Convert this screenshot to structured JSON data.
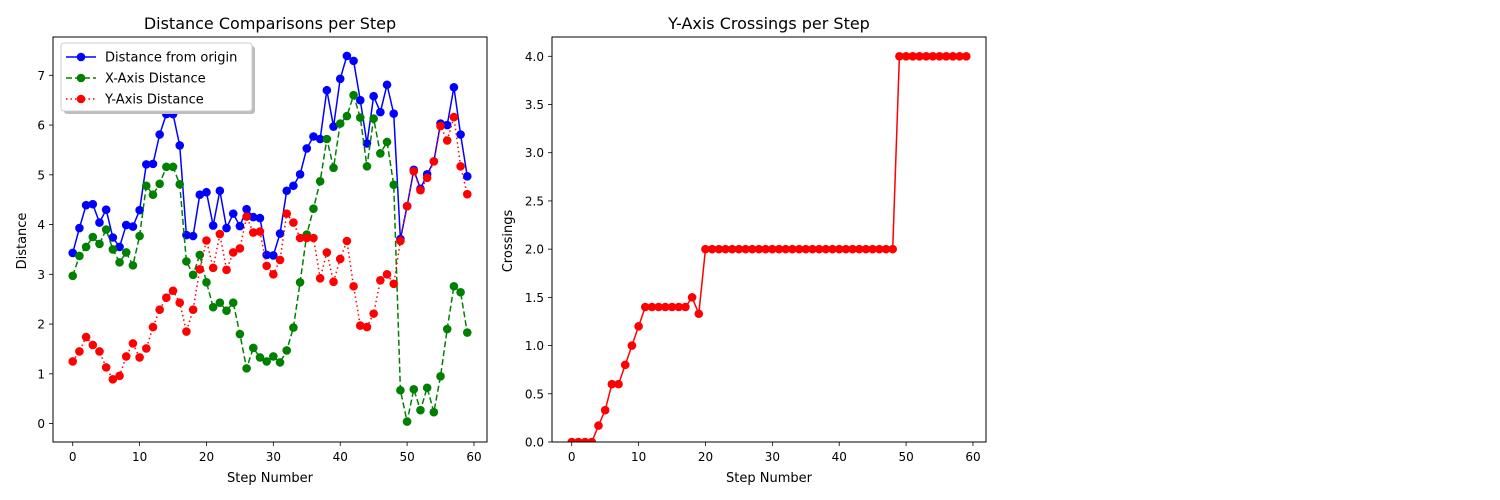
{
  "chart_data": [
    {
      "type": "line",
      "title": "Distance Comparisons per Step",
      "xlabel": "Step Number",
      "ylabel": "Distance",
      "xlim": [
        -2.95,
        61.95
      ],
      "ylim": [
        -0.37,
        7.77
      ],
      "xticks": [
        0,
        10,
        20,
        30,
        40,
        50,
        60
      ],
      "yticks": [
        0,
        1,
        2,
        3,
        4,
        5,
        6,
        7
      ],
      "grid": false,
      "legend": "upper-left",
      "x": [
        0,
        1,
        2,
        3,
        4,
        5,
        6,
        7,
        8,
        9,
        10,
        11,
        12,
        13,
        14,
        15,
        16,
        17,
        18,
        19,
        20,
        21,
        22,
        23,
        24,
        25,
        26,
        27,
        28,
        29,
        30,
        31,
        32,
        33,
        34,
        35,
        36,
        37,
        38,
        39,
        40,
        41,
        42,
        43,
        44,
        45,
        46,
        47,
        48,
        49,
        50,
        51,
        52,
        53,
        54,
        55,
        56,
        57,
        58,
        59
      ],
      "series": [
        {
          "name": "Distance from origin",
          "color": "#0000ff",
          "style": "solid",
          "values": [
            3.43,
            3.93,
            4.39,
            4.41,
            4.04,
            4.3,
            3.74,
            3.55,
            3.99,
            3.96,
            4.29,
            5.21,
            5.22,
            5.81,
            6.22,
            6.22,
            5.59,
            3.79,
            3.77,
            4.6,
            4.65,
            3.98,
            4.68,
            3.93,
            4.22,
            3.97,
            4.31,
            4.15,
            4.13,
            3.39,
            3.38,
            3.82,
            4.68,
            4.78,
            5.01,
            5.53,
            5.77,
            5.72,
            6.7,
            5.97,
            6.93,
            7.39,
            7.29,
            6.5,
            5.63,
            6.58,
            6.26,
            6.81,
            6.23,
            3.71,
            4.37,
            5.1,
            4.72,
            5.01,
            5.27,
            6.03,
            6.0,
            6.76,
            5.81,
            4.97
          ]
        },
        {
          "name": "X-Axis Distance",
          "color": "#008000",
          "style": "dashed",
          "values": [
            2.97,
            3.37,
            3.55,
            3.75,
            3.61,
            3.9,
            3.5,
            3.24,
            3.44,
            3.18,
            3.77,
            4.78,
            4.6,
            4.82,
            5.16,
            5.16,
            4.81,
            3.26,
            2.99,
            3.39,
            2.84,
            2.34,
            2.43,
            2.27,
            2.43,
            1.8,
            1.11,
            1.52,
            1.33,
            1.25,
            1.35,
            1.23,
            1.47,
            1.93,
            2.84,
            3.8,
            4.32,
            4.87,
            5.72,
            5.14,
            6.03,
            6.18,
            6.6,
            6.15,
            5.17,
            6.13,
            5.43,
            5.66,
            4.8,
            0.67,
            0.04,
            0.69,
            0.27,
            0.72,
            0.23,
            0.95,
            1.9,
            2.76,
            2.64,
            1.83
          ]
        },
        {
          "name": "Y-Axis Distance",
          "color": "#ff0000",
          "style": "dotted",
          "values": [
            1.25,
            1.45,
            1.74,
            1.58,
            1.45,
            1.13,
            0.89,
            0.96,
            1.35,
            1.61,
            1.33,
            1.51,
            1.94,
            2.29,
            2.53,
            2.67,
            2.43,
            1.85,
            2.29,
            3.1,
            3.68,
            3.13,
            3.81,
            3.09,
            3.44,
            3.52,
            4.16,
            3.84,
            3.86,
            3.17,
            3.0,
            3.29,
            4.22,
            4.04,
            3.73,
            3.73,
            3.73,
            2.92,
            3.44,
            2.85,
            3.31,
            3.67,
            2.76,
            1.97,
            1.94,
            2.21,
            2.88,
            3.0,
            2.81,
            3.67,
            4.37,
            5.07,
            4.69,
            4.94,
            5.27,
            5.98,
            5.69,
            6.16,
            5.17,
            4.61
          ]
        }
      ]
    },
    {
      "type": "line",
      "title": "Y-Axis Crossings per Step",
      "xlabel": "Step Number",
      "ylabel": "Crossings",
      "xlim": [
        -2.95,
        61.95
      ],
      "ylim": [
        0.0,
        4.2
      ],
      "xticks": [
        0,
        10,
        20,
        30,
        40,
        50,
        60
      ],
      "yticks": [
        "0.0",
        "0.5",
        "1.0",
        "1.5",
        "2.0",
        "2.5",
        "3.0",
        "3.5",
        "4.0"
      ],
      "grid": false,
      "x": [
        0,
        1,
        2,
        3,
        4,
        5,
        6,
        7,
        8,
        9,
        10,
        11,
        12,
        13,
        14,
        15,
        16,
        17,
        18,
        19,
        20,
        21,
        22,
        23,
        24,
        25,
        26,
        27,
        28,
        29,
        30,
        31,
        32,
        33,
        34,
        35,
        36,
        37,
        38,
        39,
        40,
        41,
        42,
        43,
        44,
        45,
        46,
        47,
        48,
        49,
        50,
        51,
        52,
        53,
        54,
        55,
        56,
        57,
        58,
        59
      ],
      "series": [
        {
          "color": "#ff0000",
          "style": "solid",
          "values": [
            0,
            0,
            0,
            0,
            0.17,
            0.33,
            0.6,
            0.6,
            0.8,
            1.0,
            1.2,
            1.4,
            1.4,
            1.4,
            1.4,
            1.4,
            1.4,
            1.4,
            1.5,
            1.33,
            2,
            2,
            2,
            2,
            2,
            2,
            2,
            2,
            2,
            2,
            2,
            2,
            2,
            2,
            2,
            2,
            2,
            2,
            2,
            2,
            2,
            2,
            2,
            2,
            2,
            2,
            2,
            2,
            2,
            4,
            4,
            4,
            4,
            4,
            4,
            4,
            4,
            4,
            4,
            4
          ]
        }
      ]
    }
  ]
}
